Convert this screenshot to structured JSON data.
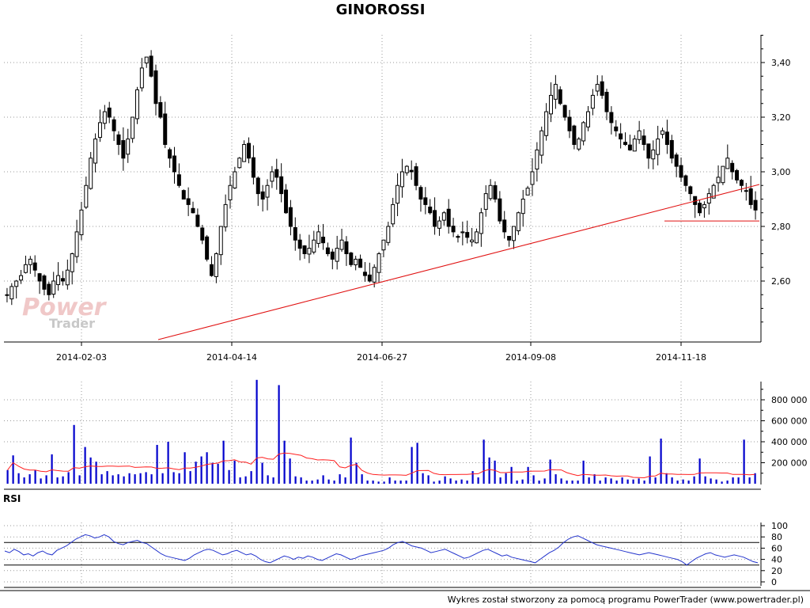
{
  "title": "GINOROSSI",
  "watermark": {
    "line1": "Power",
    "line2": "Trader"
  },
  "footer": "Wykres został stworzony za pomocą programu PowerTrader (www.powertrader.pl)",
  "colors": {
    "candle": "#000000",
    "trendline": "#e01010",
    "volume_bar": "#0000cc",
    "volume_avg": "#ff2020",
    "rsi_line": "#2233cc",
    "grid": "#999999"
  },
  "chart_data": [
    {
      "type": "candlestick",
      "title": "GINOROSSI",
      "x_tick_labels": [
        "2014-02-03",
        "2014-04-14",
        "2014-06-27",
        "2014-09-08",
        "2014-11-18"
      ],
      "y_tick_labels": [
        "3,40",
        "3,20",
        "3,00",
        "2,80",
        "2,60"
      ],
      "y_ticks": [
        3.4,
        3.2,
        3.0,
        2.8,
        2.6
      ],
      "ylim": [
        2.42,
        3.52
      ],
      "grid": true,
      "close_approx": [
        2.55,
        2.58,
        2.6,
        2.62,
        2.66,
        2.68,
        2.64,
        2.6,
        2.57,
        2.55,
        2.6,
        2.62,
        2.6,
        2.64,
        2.7,
        2.78,
        2.86,
        2.95,
        3.05,
        3.12,
        3.18,
        3.22,
        3.2,
        3.15,
        3.1,
        3.05,
        3.12,
        3.2,
        3.3,
        3.38,
        3.42,
        3.35,
        3.25,
        3.2,
        3.1,
        3.05,
        3.0,
        2.95,
        2.9,
        2.88,
        2.85,
        2.8,
        2.75,
        2.68,
        2.62,
        2.7,
        2.8,
        2.88,
        2.95,
        3.0,
        3.05,
        3.1,
        3.05,
        2.98,
        2.92,
        2.9,
        2.95,
        3.0,
        2.98,
        2.92,
        2.85,
        2.8,
        2.75,
        2.72,
        2.7,
        2.72,
        2.75,
        2.78,
        2.74,
        2.7,
        2.68,
        2.72,
        2.75,
        2.7,
        2.66,
        2.68,
        2.65,
        2.62,
        2.6,
        2.65,
        2.7,
        2.75,
        2.8,
        2.88,
        2.95,
        3.0,
        3.02,
        3.0,
        2.95,
        2.9,
        2.88,
        2.85,
        2.8,
        2.82,
        2.85,
        2.8,
        2.78,
        2.76,
        2.78,
        2.76,
        2.75,
        2.78,
        2.85,
        2.92,
        2.95,
        2.9,
        2.82,
        2.78,
        2.75,
        2.8,
        2.85,
        2.9,
        2.94,
        3.0,
        3.08,
        3.15,
        3.22,
        3.28,
        3.32,
        3.25,
        3.2,
        3.15,
        3.1,
        3.12,
        3.18,
        3.22,
        3.28,
        3.32,
        3.28,
        3.22,
        3.18,
        3.15,
        3.12,
        3.1,
        3.08,
        3.12,
        3.15,
        3.1,
        3.05,
        3.08,
        3.12,
        3.15,
        3.1,
        3.05,
        3.02,
        2.98,
        2.95,
        2.92,
        2.88,
        2.85,
        2.88,
        2.92,
        2.95,
        2.98,
        3.02,
        3.05,
        3.0,
        2.97,
        2.95,
        2.93,
        2.88,
        2.86
      ],
      "annotations": [
        {
          "kind": "trendline",
          "from": [
            "2014-03-15",
            2.42
          ],
          "to": [
            "2014-12-31",
            2.93
          ]
        },
        {
          "kind": "support_line",
          "value": 2.82
        }
      ]
    },
    {
      "type": "bar",
      "name": "volume",
      "y_tick_labels": [
        "800 000",
        "600 000",
        "400 000",
        "200 000"
      ],
      "y_ticks": [
        800000,
        600000,
        400000,
        200000
      ],
      "ylim": [
        0,
        1000000
      ],
      "values_approx": [
        130000,
        270000,
        100000,
        60000,
        90000,
        130000,
        50000,
        80000,
        280000,
        60000,
        70000,
        110000,
        560000,
        80000,
        350000,
        250000,
        210000,
        90000,
        120000,
        80000,
        90000,
        70000,
        100000,
        90000,
        100000,
        110000,
        90000,
        370000,
        100000,
        400000,
        110000,
        100000,
        300000,
        120000,
        210000,
        260000,
        300000,
        200000,
        190000,
        410000,
        130000,
        220000,
        60000,
        70000,
        120000,
        990000,
        200000,
        80000,
        60000,
        940000,
        410000,
        240000,
        70000,
        60000,
        30000,
        30000,
        40000,
        80000,
        40000,
        30000,
        90000,
        60000,
        440000,
        200000,
        90000,
        30000,
        30000,
        20000,
        20000,
        60000,
        30000,
        30000,
        30000,
        350000,
        390000,
        100000,
        80000,
        20000,
        30000,
        70000,
        50000,
        30000,
        40000,
        30000,
        120000,
        60000,
        420000,
        250000,
        220000,
        60000,
        100000,
        160000,
        30000,
        40000,
        160000,
        80000,
        30000,
        50000,
        230000,
        90000,
        50000,
        30000,
        30000,
        30000,
        220000,
        60000,
        90000,
        30000,
        60000,
        50000,
        30000,
        60000,
        40000,
        40000,
        50000,
        30000,
        260000,
        60000,
        430000,
        100000,
        60000,
        30000,
        40000,
        30000,
        70000,
        240000,
        70000,
        50000,
        40000,
        20000,
        30000,
        60000,
        60000,
        420000,
        60000,
        100000
      ],
      "average_line": true
    },
    {
      "type": "line",
      "name": "RSI",
      "y_tick_labels": [
        "100",
        "80",
        "60",
        "40",
        "20",
        "0"
      ],
      "y_ticks": [
        100,
        80,
        60,
        40,
        20,
        0
      ],
      "ylim": [
        0,
        100
      ],
      "reference_levels": [
        70,
        30
      ],
      "values_approx": [
        55,
        52,
        58,
        54,
        48,
        50,
        46,
        52,
        55,
        50,
        48,
        56,
        60,
        64,
        70,
        76,
        80,
        84,
        82,
        78,
        80,
        84,
        80,
        72,
        68,
        66,
        70,
        72,
        74,
        70,
        68,
        62,
        56,
        50,
        46,
        44,
        42,
        40,
        38,
        42,
        48,
        52,
        56,
        58,
        56,
        52,
        48,
        50,
        54,
        56,
        52,
        48,
        50,
        46,
        40,
        36,
        34,
        38,
        42,
        46,
        44,
        40,
        44,
        42,
        46,
        44,
        40,
        38,
        42,
        46,
        50,
        48,
        44,
        40,
        42,
        46,
        48,
        50,
        52,
        54,
        56,
        60,
        66,
        70,
        72,
        68,
        64,
        62,
        60,
        56,
        52,
        54,
        56,
        58,
        54,
        50,
        46,
        42,
        44,
        48,
        52,
        56,
        58,
        54,
        50,
        46,
        48,
        44,
        42,
        40,
        38,
        36,
        34,
        40,
        46,
        52,
        56,
        62,
        70,
        76,
        80,
        82,
        78,
        74,
        70,
        66,
        64,
        62,
        60,
        58,
        56,
        54,
        52,
        50,
        48,
        50,
        52,
        50,
        48,
        46,
        44,
        42,
        40,
        36,
        30,
        36,
        42,
        46,
        50,
        52,
        48,
        46,
        44,
        46,
        48,
        46,
        44,
        40,
        36,
        34
      ]
    }
  ]
}
